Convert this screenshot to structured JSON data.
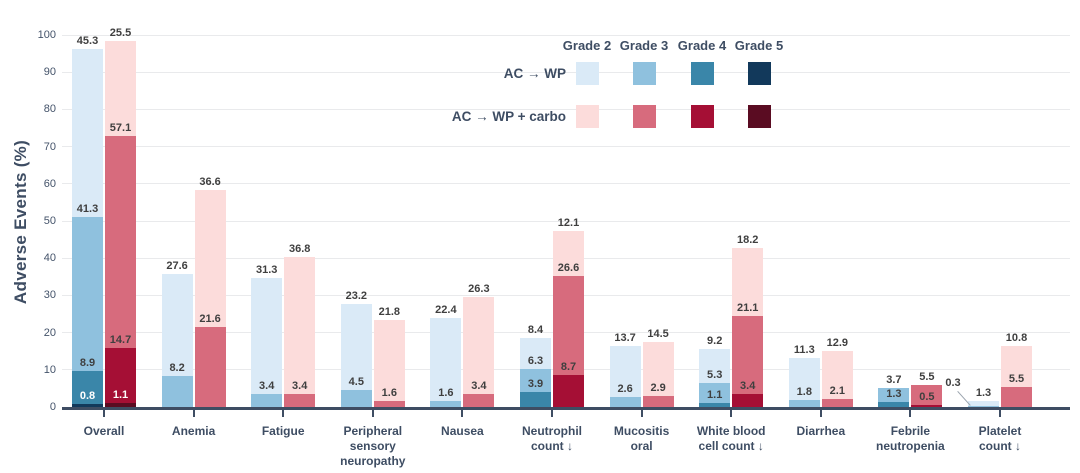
{
  "chart_data": {
    "type": "bar",
    "variant": "grouped-stacked",
    "title": "",
    "ylabel": "Adverse Events (%)",
    "xlabel": "",
    "ylim": [
      0,
      100
    ],
    "yticks": [
      0,
      10,
      20,
      30,
      40,
      50,
      60,
      70,
      80,
      90,
      100
    ],
    "grid": "horizontal",
    "legend_position": "top-right",
    "grade_labels": [
      "Grade 2",
      "Grade 3",
      "Grade 4",
      "Grade 5"
    ],
    "series": [
      {
        "key": "ac_wp",
        "name": "AC → WP",
        "colors": [
          "#daeaf7",
          "#8fc1de",
          "#3a86a9",
          "#12395b"
        ]
      },
      {
        "key": "ac_wp_carbo",
        "name": "AC → WP + carbo",
        "colors": [
          "#fcdcdb",
          "#d76b7d",
          "#a50f35",
          "#5a0c22"
        ]
      }
    ],
    "categories": [
      "Overall",
      "Anemia",
      "Fatigue",
      "Peripheral\nsensory\nneuropathy",
      "Nausea",
      "Neutrophil\ncount ↓",
      "Mucositis\noral",
      "White blood\ncell count ↓",
      "Diarrhea",
      "Febrile\nneutropenia",
      "Platelet\ncount ↓"
    ],
    "values": [
      {
        "category": "Overall",
        "ac_wp": [
          45.3,
          41.3,
          8.9,
          0.8
        ],
        "ac_wp_carbo": [
          25.5,
          57.1,
          14.7,
          1.1
        ]
      },
      {
        "category": "Anemia",
        "ac_wp": [
          27.6,
          8.2,
          null,
          null
        ],
        "ac_wp_carbo": [
          36.6,
          21.6,
          null,
          null
        ]
      },
      {
        "category": "Fatigue",
        "ac_wp": [
          31.3,
          3.4,
          null,
          null
        ],
        "ac_wp_carbo": [
          36.8,
          3.4,
          null,
          null
        ]
      },
      {
        "category": "Peripheral sensory neuropathy",
        "ac_wp": [
          23.2,
          4.5,
          null,
          null
        ],
        "ac_wp_carbo": [
          21.8,
          1.6,
          null,
          null
        ]
      },
      {
        "category": "Nausea",
        "ac_wp": [
          22.4,
          1.6,
          null,
          null
        ],
        "ac_wp_carbo": [
          26.3,
          3.4,
          null,
          null
        ]
      },
      {
        "category": "Neutrophil count ↓",
        "ac_wp": [
          8.4,
          6.3,
          3.9,
          null
        ],
        "ac_wp_carbo": [
          12.1,
          26.6,
          8.7,
          null
        ]
      },
      {
        "category": "Mucositis oral",
        "ac_wp": [
          13.7,
          2.6,
          null,
          null
        ],
        "ac_wp_carbo": [
          14.5,
          2.9,
          null,
          null
        ]
      },
      {
        "category": "White blood cell count ↓",
        "ac_wp": [
          9.2,
          5.3,
          1.1,
          null
        ],
        "ac_wp_carbo": [
          18.2,
          21.1,
          3.4,
          null
        ]
      },
      {
        "category": "Diarrhea",
        "ac_wp": [
          11.3,
          1.8,
          null,
          null
        ],
        "ac_wp_carbo": [
          12.9,
          2.1,
          null,
          null
        ]
      },
      {
        "category": "Febrile neutropenia",
        "ac_wp": [
          null,
          3.7,
          1.3,
          null
        ],
        "ac_wp_carbo": [
          null,
          5.5,
          0.5,
          null
        ]
      },
      {
        "category": "Platelet count ↓",
        "ac_wp": [
          1.3,
          0.3,
          null,
          null
        ],
        "ac_wp_carbo": [
          10.8,
          5.5,
          null,
          null
        ]
      }
    ],
    "callouts": [
      {
        "category_index": 10,
        "series_key": "ac_wp",
        "grade_index": 1,
        "value": 0.3
      }
    ]
  },
  "colors": {
    "axis_text": "#44536a",
    "category_text": "#3e4d63",
    "value_label": "#3f3f3f",
    "value_label_light": "#ffffff",
    "gridline": "#e9eaec",
    "axis_line": "#3e4d63",
    "leader_line": "#9aa3ad"
  }
}
